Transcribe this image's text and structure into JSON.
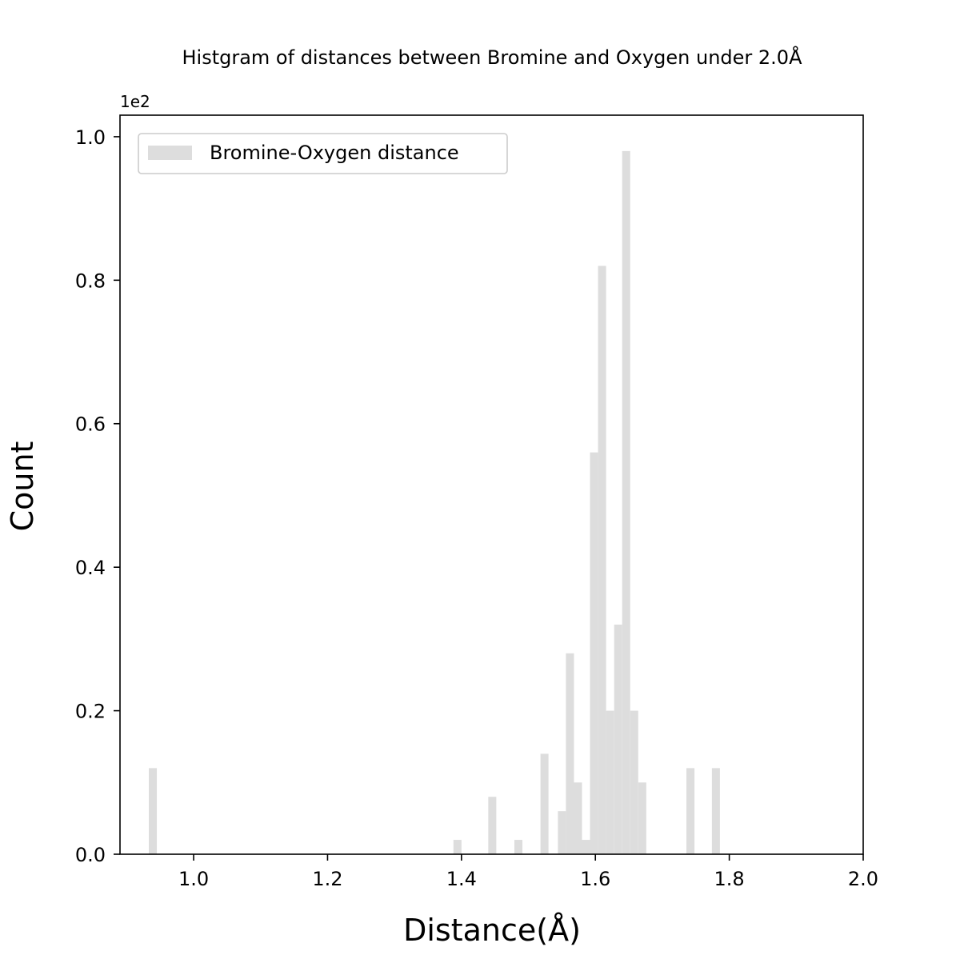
{
  "chart_data": {
    "type": "bar",
    "title": "Histgram of distances between Bromine and Oxygen under 2.0Å",
    "xlabel": "Distance(Å)",
    "ylabel": "Count",
    "y_offset_text": "1e2",
    "y_scale_multiplier": 100,
    "xlim": [
      0.89,
      2.0
    ],
    "ylim": [
      0,
      103
    ],
    "x_ticks": [
      1.0,
      1.2,
      1.4,
      1.6,
      1.8,
      2.0
    ],
    "x_tick_labels": [
      "1.0",
      "1.2",
      "1.4",
      "1.6",
      "1.8",
      "2.0"
    ],
    "y_ticks": [
      0,
      20,
      40,
      60,
      80,
      100
    ],
    "y_tick_labels": [
      "0.0",
      "0.2",
      "0.4",
      "0.6",
      "0.8",
      "1.0"
    ],
    "grid": false,
    "legend_position": "top-left",
    "bar_color": "#dddddd",
    "series": [
      {
        "name": "Bromine-Oxygen distance",
        "bins": [
          {
            "x0": 0.933,
            "x1": 0.945,
            "count": 12
          },
          {
            "x0": 1.388,
            "x1": 1.4,
            "count": 2
          },
          {
            "x0": 1.44,
            "x1": 1.452,
            "count": 8
          },
          {
            "x0": 1.479,
            "x1": 1.491,
            "count": 2
          },
          {
            "x0": 1.518,
            "x1": 1.53,
            "count": 14
          },
          {
            "x0": 1.544,
            "x1": 1.556,
            "count": 6
          },
          {
            "x0": 1.556,
            "x1": 1.568,
            "count": 28
          },
          {
            "x0": 1.568,
            "x1": 1.58,
            "count": 10
          },
          {
            "x0": 1.58,
            "x1": 1.592,
            "count": 2
          },
          {
            "x0": 1.592,
            "x1": 1.604,
            "count": 56
          },
          {
            "x0": 1.604,
            "x1": 1.616,
            "count": 82
          },
          {
            "x0": 1.616,
            "x1": 1.628,
            "count": 20
          },
          {
            "x0": 1.628,
            "x1": 1.64,
            "count": 32
          },
          {
            "x0": 1.64,
            "x1": 1.652,
            "count": 98
          },
          {
            "x0": 1.652,
            "x1": 1.664,
            "count": 20
          },
          {
            "x0": 1.664,
            "x1": 1.676,
            "count": 10
          },
          {
            "x0": 1.736,
            "x1": 1.748,
            "count": 12
          },
          {
            "x0": 1.774,
            "x1": 1.786,
            "count": 12
          }
        ]
      }
    ]
  }
}
